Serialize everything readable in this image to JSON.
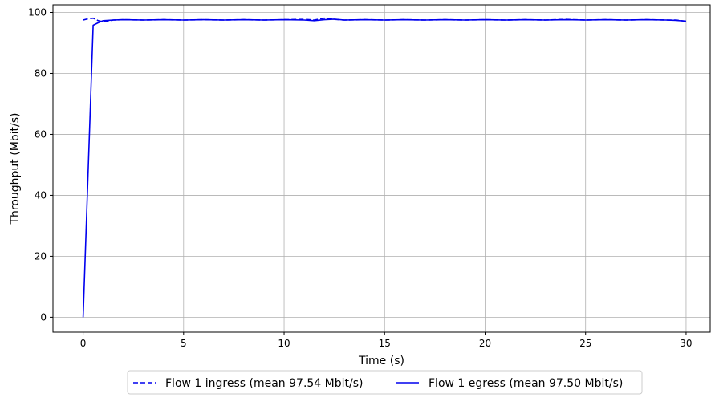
{
  "chart_data": {
    "type": "line",
    "xlabel": "Time (s)",
    "ylabel": "Throughput (Mbit/s)",
    "xlim": [
      -1.5,
      31.2
    ],
    "ylim": [
      -4.9,
      102.5
    ],
    "xticks": [
      0,
      5,
      10,
      15,
      20,
      25,
      30
    ],
    "yticks": [
      0,
      20,
      40,
      60,
      80,
      100
    ],
    "grid": true,
    "legend_position": "bottom-center",
    "series": [
      {
        "name": "Flow 1 ingress (mean 97.54 Mbit/s)",
        "style": "dashed",
        "color": "#0000ee",
        "x": [
          0,
          0.25,
          0.5,
          0.75,
          1.0,
          1.25,
          1.5,
          2,
          3,
          4,
          5,
          6,
          7,
          8,
          9,
          10,
          11,
          11.5,
          12,
          12.5,
          13,
          14,
          15,
          16,
          17,
          18,
          19,
          20,
          21,
          22,
          23,
          24,
          25,
          26,
          27,
          28,
          29,
          29.5,
          30
        ],
        "y": [
          97.5,
          97.9,
          98.1,
          97.3,
          96.9,
          97.1,
          97.5,
          97.6,
          97.5,
          97.6,
          97.5,
          97.6,
          97.5,
          97.6,
          97.5,
          97.6,
          97.7,
          97.5,
          98.1,
          97.7,
          97.5,
          97.6,
          97.5,
          97.6,
          97.5,
          97.6,
          97.5,
          97.6,
          97.5,
          97.6,
          97.5,
          97.7,
          97.5,
          97.6,
          97.5,
          97.6,
          97.5,
          97.5,
          97.1
        ]
      },
      {
        "name": "Flow 1 egress (mean 97.50 Mbit/s)",
        "style": "solid",
        "color": "#0000ee",
        "x": [
          0,
          0.5,
          0.75,
          1.0,
          1.25,
          1.5,
          2,
          3,
          4,
          5,
          6,
          7,
          8,
          9,
          10,
          11,
          11.5,
          12,
          12.5,
          13,
          14,
          15,
          16,
          17,
          18,
          19,
          20,
          21,
          22,
          23,
          24,
          25,
          26,
          27,
          28,
          29,
          29.5,
          30
        ],
        "y": [
          0,
          95.8,
          96.6,
          97.3,
          97.4,
          97.5,
          97.6,
          97.5,
          97.6,
          97.5,
          97.6,
          97.5,
          97.6,
          97.5,
          97.6,
          97.5,
          97.3,
          97.6,
          97.8,
          97.5,
          97.6,
          97.5,
          97.6,
          97.5,
          97.6,
          97.5,
          97.6,
          97.5,
          97.6,
          97.5,
          97.6,
          97.5,
          97.6,
          97.5,
          97.6,
          97.5,
          97.4,
          97.1
        ]
      }
    ]
  }
}
